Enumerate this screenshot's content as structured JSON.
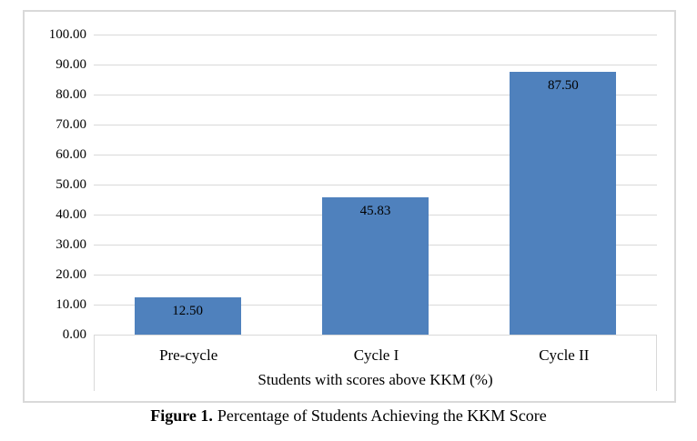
{
  "figure": {
    "caption_prefix": "Figure 1.",
    "caption_text": "Percentage of Students Achieving the KKM Score"
  },
  "chart_data": {
    "type": "bar",
    "categories": [
      "Pre-cycle",
      "Cycle I",
      "Cycle II"
    ],
    "values": [
      12.5,
      45.83,
      87.5
    ],
    "value_labels": [
      "12.50",
      "45.83",
      "87.50"
    ],
    "title": "",
    "xlabel": "Students with scores above KKM (%)",
    "ylabel": "",
    "ylim": [
      0,
      100
    ],
    "ytick_step": 10,
    "yticks": [
      "0.00",
      "10.00",
      "20.00",
      "30.00",
      "40.00",
      "50.00",
      "60.00",
      "70.00",
      "80.00",
      "90.00",
      "100.00"
    ],
    "grid": true,
    "legend": false,
    "value_label_position": "inside-end",
    "colors": {
      "bar_fill": "#4F81BD",
      "gridline": "#D9D9D9",
      "axis_line": "#D9D9D9",
      "frame_border": "#D9D9D9",
      "text": "#000000",
      "background": "#FFFFFF"
    }
  }
}
